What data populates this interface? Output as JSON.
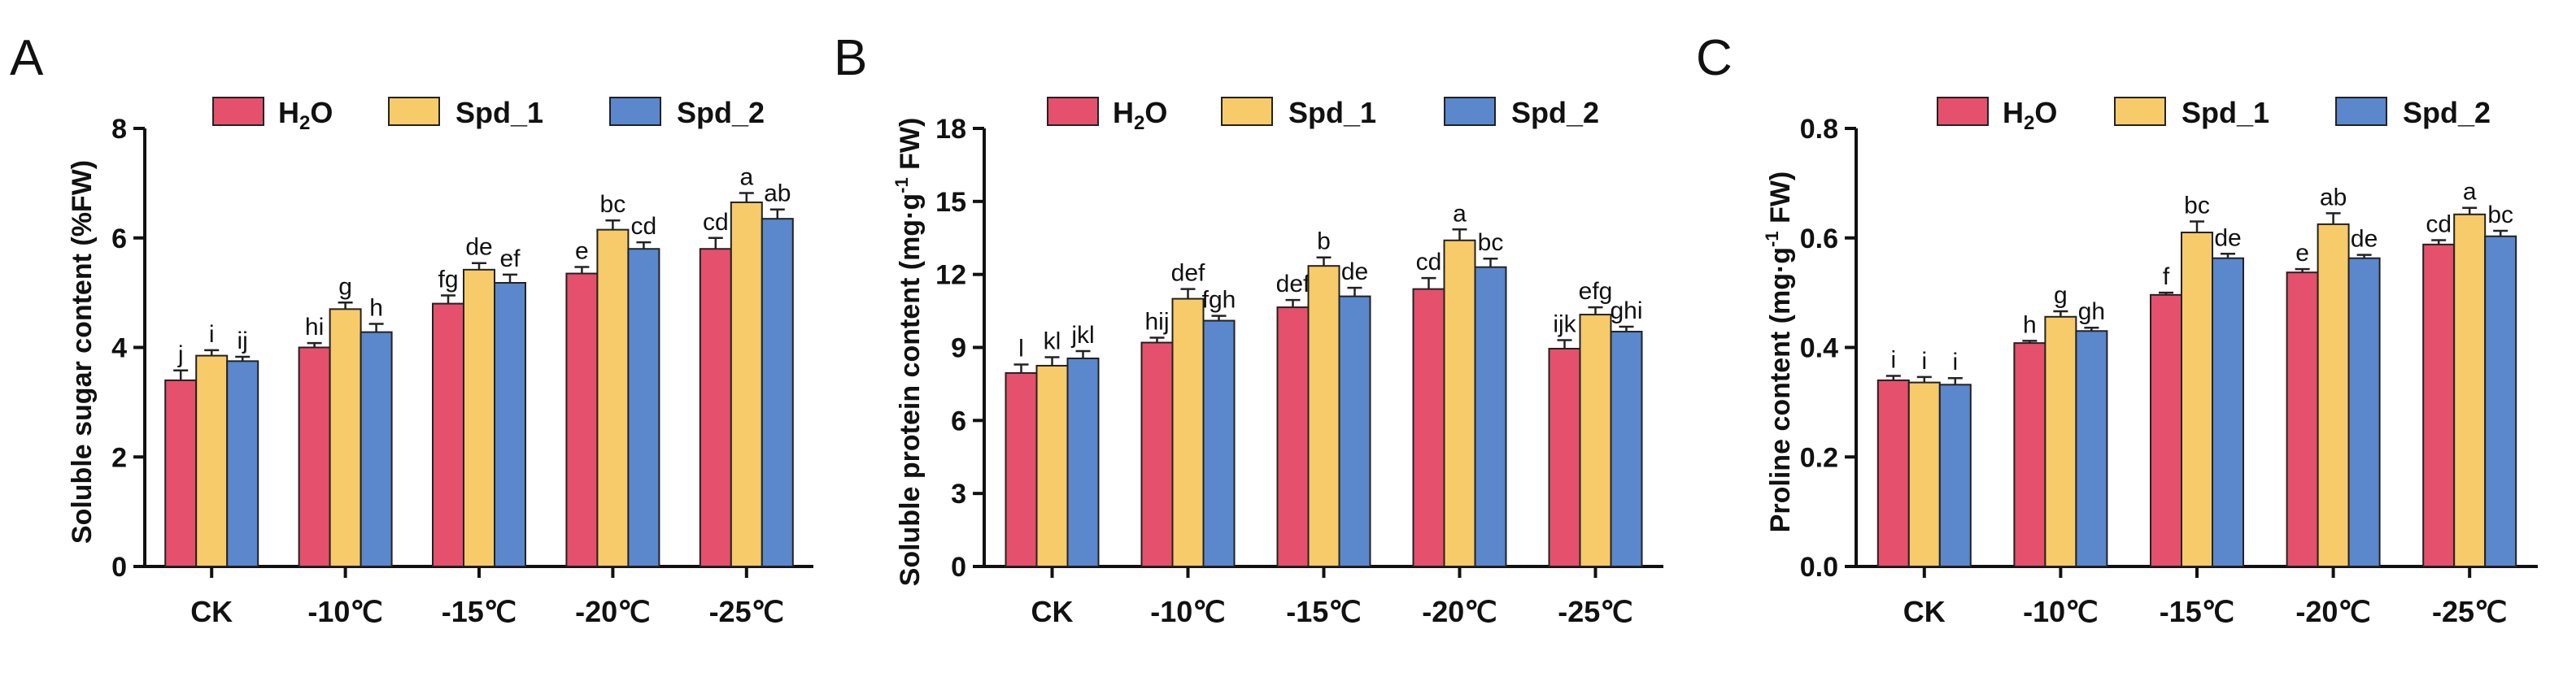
{
  "legend": {
    "h2o_main": "H",
    "h2o_sub": "2",
    "h2o_tail": "O",
    "spd1": "Spd_1",
    "spd2": "Spd_2"
  },
  "colors": {
    "h2o": "#e5506c",
    "spd1": "#f7cb69",
    "spd2": "#5b87cc"
  },
  "categories": [
    "CK",
    "-10℃",
    "-15℃",
    "-20℃",
    "-25℃"
  ],
  "chart_data": [
    {
      "type": "bar",
      "panel": "A",
      "ylabel": "Soluble sugar content (%FW)",
      "ylim": [
        0,
        8
      ],
      "yticks": [
        0,
        2,
        4,
        6,
        8
      ],
      "tick_decimals": 0,
      "categories": [
        "CK",
        "-10℃",
        "-15℃",
        "-20℃",
        "-25℃"
      ],
      "series": [
        {
          "name": "H2O",
          "values": [
            3.4,
            4.0,
            4.8,
            5.35,
            5.8
          ],
          "errors": [
            0.18,
            0.08,
            0.15,
            0.12,
            0.2
          ],
          "letters": [
            "j",
            "hi",
            "fg",
            "e",
            "cd"
          ]
        },
        {
          "name": "Spd_1",
          "values": [
            3.85,
            4.7,
            5.42,
            6.15,
            6.65
          ],
          "errors": [
            0.1,
            0.12,
            0.12,
            0.17,
            0.17
          ],
          "letters": [
            "i",
            "g",
            "de",
            "bc",
            "a"
          ]
        },
        {
          "name": "Spd_2",
          "values": [
            3.75,
            4.28,
            5.18,
            5.8,
            6.35
          ],
          "errors": [
            0.08,
            0.15,
            0.15,
            0.12,
            0.17
          ],
          "letters": [
            "ij",
            "h",
            "ef",
            "cd",
            "ab"
          ]
        }
      ]
    },
    {
      "type": "bar",
      "panel": "B",
      "ylabel_main": "Soluble protein content (mg·g",
      "ylabel_sup": "-1",
      "ylabel_tail": " FW)",
      "ylim": [
        0,
        18
      ],
      "yticks": [
        0,
        3,
        6,
        9,
        12,
        15,
        18
      ],
      "tick_decimals": 0,
      "categories": [
        "CK",
        "-10℃",
        "-15℃",
        "-20℃",
        "-25℃"
      ],
      "series": [
        {
          "name": "H2O",
          "values": [
            7.95,
            9.2,
            10.65,
            11.4,
            8.95
          ],
          "errors": [
            0.35,
            0.2,
            0.3,
            0.45,
            0.35
          ],
          "letters": [
            "l",
            "hij",
            "def",
            "cd",
            "ijk"
          ]
        },
        {
          "name": "Spd_1",
          "values": [
            8.25,
            11.0,
            12.35,
            13.4,
            10.35
          ],
          "errors": [
            0.35,
            0.4,
            0.35,
            0.45,
            0.3
          ],
          "letters": [
            "kl",
            "def",
            "b",
            "a",
            "efg"
          ]
        },
        {
          "name": "Spd_2",
          "values": [
            8.55,
            10.1,
            11.1,
            12.3,
            9.65
          ],
          "errors": [
            0.3,
            0.2,
            0.35,
            0.35,
            0.2
          ],
          "letters": [
            "jkl",
            "fgh",
            "de",
            "bc",
            "ghi"
          ]
        }
      ]
    },
    {
      "type": "bar",
      "panel": "C",
      "ylabel_main": "Proline content (mg·g",
      "ylabel_sup": "-1",
      "ylabel_tail": " FW)",
      "ylim": [
        0,
        0.8
      ],
      "yticks": [
        0.0,
        0.2,
        0.4,
        0.6,
        0.8
      ],
      "tick_decimals": 1,
      "categories": [
        "CK",
        "-10℃",
        "-15℃",
        "-20℃",
        "-25℃"
      ],
      "series": [
        {
          "name": "H2O",
          "values": [
            0.34,
            0.408,
            0.496,
            0.537,
            0.588
          ],
          "errors": [
            0.008,
            0.004,
            0.004,
            0.006,
            0.008
          ],
          "letters": [
            "i",
            "h",
            "f",
            "e",
            "cd"
          ]
        },
        {
          "name": "Spd_1",
          "values": [
            0.336,
            0.456,
            0.61,
            0.625,
            0.643
          ],
          "errors": [
            0.01,
            0.01,
            0.02,
            0.02,
            0.012
          ],
          "letters": [
            "i",
            "g",
            "bc",
            "ab",
            "a"
          ]
        },
        {
          "name": "Spd_2",
          "values": [
            0.332,
            0.43,
            0.563,
            0.563,
            0.603
          ],
          "errors": [
            0.012,
            0.006,
            0.008,
            0.006,
            0.01
          ],
          "letters": [
            "i",
            "gh",
            "de",
            "de",
            "bc"
          ]
        }
      ]
    }
  ]
}
